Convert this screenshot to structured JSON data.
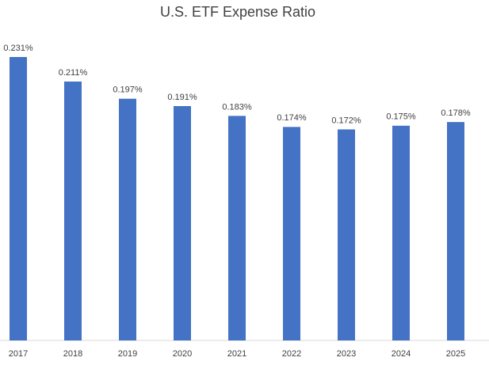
{
  "chart_data": {
    "type": "bar",
    "title": "U.S. ETF Expense Ratio",
    "categories": [
      "2017",
      "2018",
      "2019",
      "2020",
      "2021",
      "2022",
      "2023",
      "2024",
      "2025"
    ],
    "values": [
      0.231,
      0.211,
      0.197,
      0.191,
      0.183,
      0.174,
      0.172,
      0.175,
      0.178
    ],
    "value_labels": [
      "0.231%",
      "0.211%",
      "0.197%",
      "0.191%",
      "0.183%",
      "0.174%",
      "0.172%",
      "0.175%",
      "0.178%"
    ],
    "color": "#4472c4"
  }
}
